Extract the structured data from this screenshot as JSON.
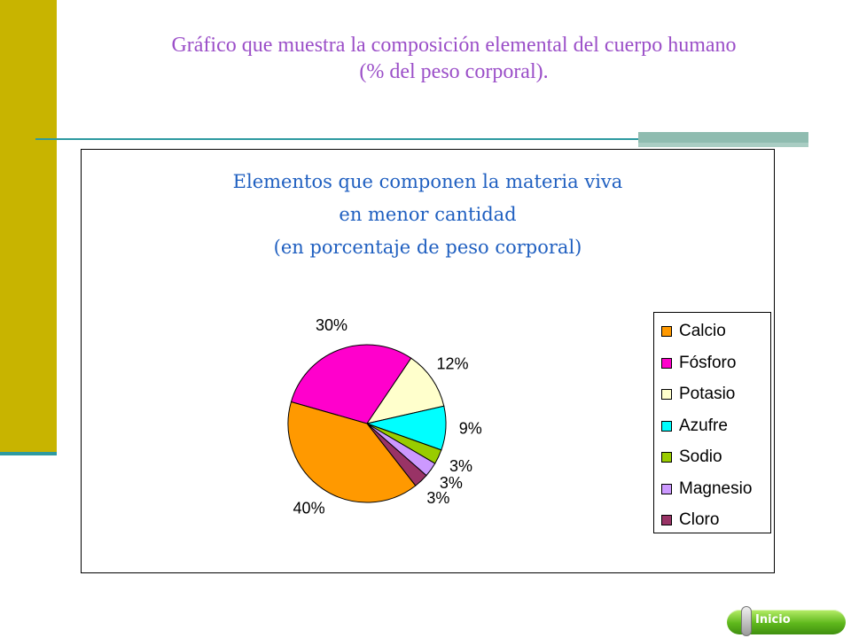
{
  "slide": {
    "title_lines": [
      "Gráfico que muestra la composición elemental del cuerpo humano",
      "(% del peso corporal)."
    ],
    "home_button_label": "Inicio"
  },
  "chart_data": {
    "type": "pie",
    "title_lines": [
      "Elementos que componen la materia viva",
      "en menor cantidad",
      "(en porcentaje de peso corporal)"
    ],
    "unit": "%",
    "slices": [
      {
        "name": "Calcio",
        "value": 40,
        "label": "40%",
        "color": "#ff9900"
      },
      {
        "name": "Fósforo",
        "value": 30,
        "label": "30%",
        "color": "#ff00cc"
      },
      {
        "name": "Potasio",
        "value": 12,
        "label": "12%",
        "color": "#ffffcc"
      },
      {
        "name": "Azufre",
        "value": 9,
        "label": "9%",
        "color": "#00ffff"
      },
      {
        "name": "Sodio",
        "value": 3,
        "label": "3%",
        "color": "#99cc00"
      },
      {
        "name": "Magnesio",
        "value": 3,
        "label": "3%",
        "color": "#cc99ff"
      },
      {
        "name": "Cloro",
        "value": 3,
        "label": "3%",
        "color": "#993366"
      }
    ],
    "legend_position": "right"
  }
}
